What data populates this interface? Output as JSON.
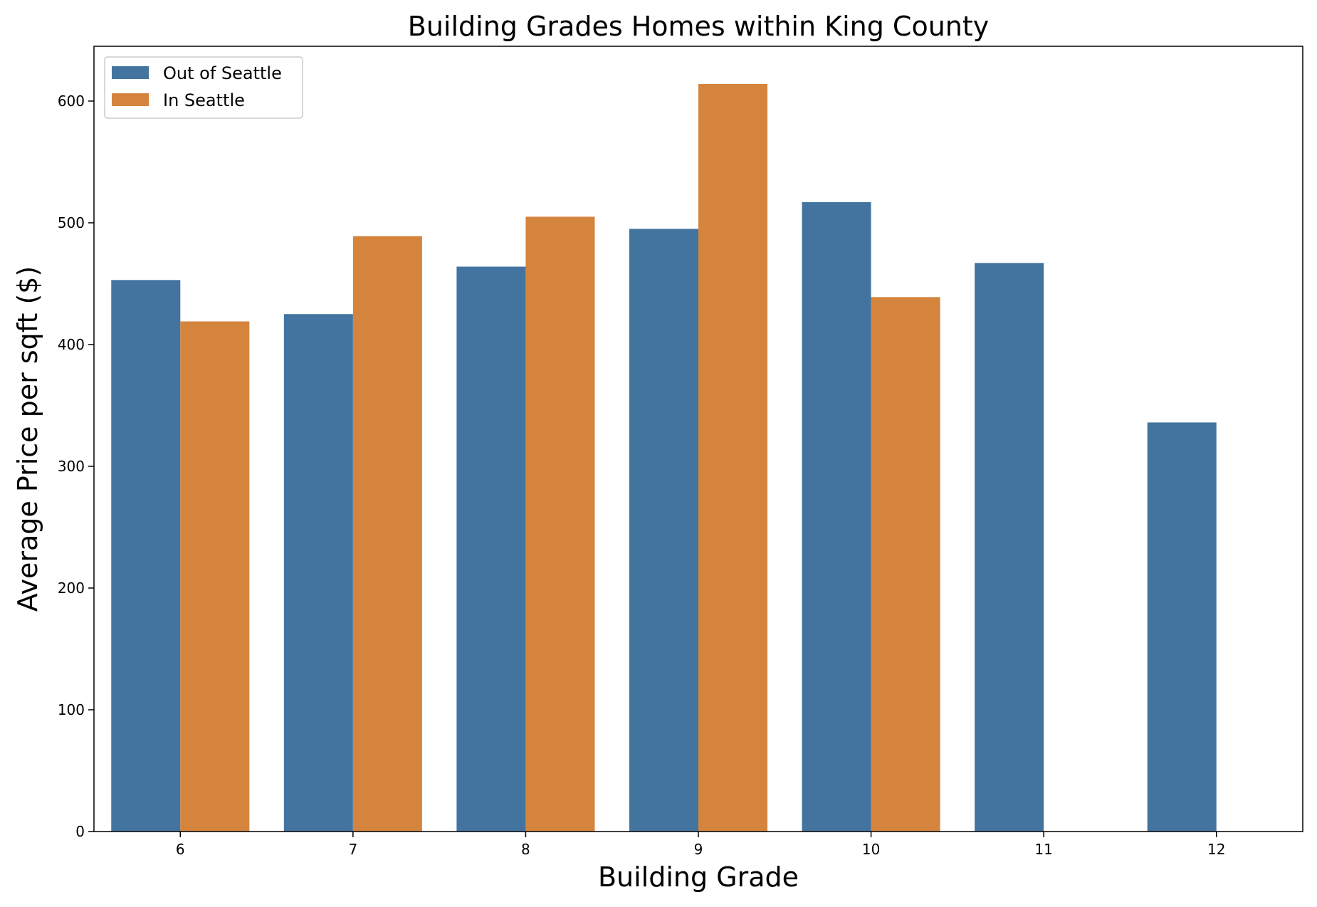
{
  "chart_data": {
    "type": "bar",
    "title": "Building Grades Homes within King County",
    "xlabel": "Building Grade",
    "ylabel": "Average Price per sqft ($)",
    "categories": [
      "6",
      "7",
      "8",
      "9",
      "10",
      "11",
      "12"
    ],
    "series": [
      {
        "name": "Out of Seattle",
        "color": "#4374a0",
        "values": [
          453,
          425,
          464,
          495,
          517,
          467,
          336
        ]
      },
      {
        "name": "In Seattle",
        "color": "#d5843e",
        "values": [
          419,
          489,
          505,
          614,
          439,
          null,
          null
        ]
      }
    ],
    "ylim": [
      0,
      645
    ],
    "yticks": [
      0,
      100,
      200,
      300,
      400,
      500,
      600
    ],
    "legend_position": "top-left",
    "grid": false
  }
}
